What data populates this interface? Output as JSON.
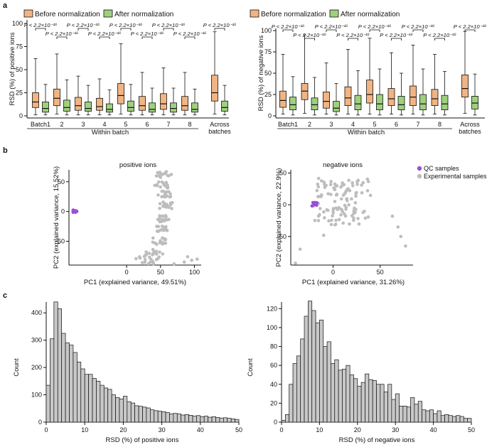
{
  "panels": {
    "a": "a",
    "b": "b",
    "c": "c"
  },
  "chart_data": [
    {
      "type": "box",
      "id": "a-pos",
      "ylabel": "RSD (%) of positive ions",
      "xlabel": "Within batch",
      "extra_label": "Across batches",
      "ylim": [
        0,
        100
      ],
      "yticks": [
        0,
        25,
        50,
        75,
        100
      ],
      "categories": [
        "Batch1",
        "2",
        "3",
        "4",
        "5",
        "6",
        "7",
        "8",
        "Across batches"
      ],
      "legend": [
        {
          "name": "Before normalization",
          "color": "#f2b482"
        },
        {
          "name": "After normalization",
          "color": "#9ed07e"
        }
      ],
      "series": [
        {
          "name": "Before normalization",
          "boxes": [
            {
              "min": 1,
              "q1": 9,
              "median": 15,
              "q3": 25,
              "max": 62
            },
            {
              "min": 2,
              "q1": 11,
              "median": 19,
              "q3": 29,
              "max": 67
            },
            {
              "min": 1,
              "q1": 6,
              "median": 11,
              "q3": 20,
              "max": 43
            },
            {
              "min": 1,
              "q1": 6,
              "median": 10,
              "q3": 19,
              "max": 40
            },
            {
              "min": 2,
              "q1": 13,
              "median": 22,
              "q3": 35,
              "max": 78
            },
            {
              "min": 1,
              "q1": 6,
              "median": 11,
              "q3": 21,
              "max": 47
            },
            {
              "min": 1,
              "q1": 7,
              "median": 13,
              "q3": 24,
              "max": 52
            },
            {
              "min": 1,
              "q1": 6,
              "median": 11,
              "q3": 21,
              "max": 47
            },
            {
              "min": 2,
              "q1": 16,
              "median": 25,
              "q3": 44,
              "max": 91
            }
          ]
        },
        {
          "name": "After normalization",
          "boxes": [
            {
              "min": 1,
              "q1": 4,
              "median": 8,
              "q3": 15,
              "max": 34
            },
            {
              "min": 1,
              "q1": 5,
              "median": 9,
              "q3": 17,
              "max": 39
            },
            {
              "min": 1,
              "q1": 5,
              "median": 8,
              "q3": 15,
              "max": 33
            },
            {
              "min": 1,
              "q1": 4,
              "median": 7,
              "q3": 13,
              "max": 28
            },
            {
              "min": 1,
              "q1": 5,
              "median": 9,
              "q3": 16,
              "max": 34
            },
            {
              "min": 1,
              "q1": 4,
              "median": 7,
              "q3": 14,
              "max": 30
            },
            {
              "min": 1,
              "q1": 4,
              "median": 8,
              "q3": 14,
              "max": 30
            },
            {
              "min": 1,
              "q1": 4,
              "median": 7,
              "q3": 14,
              "max": 29
            },
            {
              "min": 1,
              "q1": 5,
              "median": 9,
              "q3": 16,
              "max": 33
            }
          ]
        }
      ],
      "pvalue_label": "P < 2.2×10⁻¹⁶"
    },
    {
      "type": "box",
      "id": "a-neg",
      "ylabel": "RSD (%) of negative ions",
      "xlabel": "Within batch",
      "extra_label": "Across batches",
      "ylim": [
        0,
        100
      ],
      "yticks": [
        0,
        25,
        50,
        75,
        100
      ],
      "categories": [
        "Batch1",
        "2",
        "3",
        "4",
        "5",
        "6",
        "7",
        "8",
        "Across batches"
      ],
      "legend": [
        {
          "name": "Before normalization",
          "color": "#f2b482"
        },
        {
          "name": "After normalization",
          "color": "#9ed07e"
        }
      ],
      "series": [
        {
          "name": "Before normalization",
          "boxes": [
            {
              "min": 2,
              "q1": 10,
              "median": 18,
              "q3": 29,
              "max": 72
            },
            {
              "min": 3,
              "q1": 19,
              "median": 29,
              "q3": 38,
              "max": 95
            },
            {
              "min": 2,
              "q1": 9,
              "median": 17,
              "q3": 28,
              "max": 62
            },
            {
              "min": 2,
              "q1": 12,
              "median": 21,
              "q3": 34,
              "max": 78
            },
            {
              "min": 2,
              "q1": 15,
              "median": 25,
              "q3": 42,
              "max": 91
            },
            {
              "min": 2,
              "q1": 12,
              "median": 20,
              "q3": 32,
              "max": 74
            },
            {
              "min": 2,
              "q1": 12,
              "median": 22,
              "q3": 35,
              "max": 83
            },
            {
              "min": 2,
              "q1": 12,
              "median": 20,
              "q3": 31,
              "max": 72
            },
            {
              "min": 3,
              "q1": 22,
              "median": 32,
              "q3": 48,
              "max": 99
            }
          ]
        },
        {
          "name": "After normalization",
          "boxes": [
            {
              "min": 1,
              "q1": 7,
              "median": 13,
              "q3": 22,
              "max": 46
            },
            {
              "min": 1,
              "q1": 7,
              "median": 13,
              "q3": 21,
              "max": 45
            },
            {
              "min": 1,
              "q1": 5,
              "median": 9,
              "q3": 17,
              "max": 38
            },
            {
              "min": 1,
              "q1": 7,
              "median": 14,
              "q3": 24,
              "max": 53
            },
            {
              "min": 1,
              "q1": 7,
              "median": 14,
              "q3": 25,
              "max": 55
            },
            {
              "min": 1,
              "q1": 7,
              "median": 13,
              "q3": 23,
              "max": 50
            },
            {
              "min": 1,
              "q1": 7,
              "median": 14,
              "q3": 25,
              "max": 55
            },
            {
              "min": 1,
              "q1": 7,
              "median": 14,
              "q3": 24,
              "max": 52
            },
            {
              "min": 1,
              "q1": 8,
              "median": 15,
              "q3": 23,
              "max": 49
            }
          ]
        }
      ],
      "pvalue_label": "P < 2.2×10⁻¹⁶"
    },
    {
      "type": "scatter",
      "id": "b-pos",
      "title": "positive ions",
      "xlabel": "PC1 (explained variance, 49.51%)",
      "ylabel": "PC2 (explained variance, 15.52%)",
      "xlim": [
        -85,
        110
      ],
      "ylim": [
        -90,
        70
      ],
      "xticks": [
        0,
        50,
        100
      ],
      "yticks": [
        -50,
        0,
        50
      ],
      "qc_color": "#9b4fd6",
      "exp_color": "#bdbdbd"
    },
    {
      "type": "scatter",
      "id": "b-neg",
      "title": "negative ions",
      "xlabel": "PC1 (explained variance, 31.26%)",
      "ylabel": "PC2 (explained variance, 22.9%)",
      "xlim": [
        -45,
        85
      ],
      "ylim": [
        -95,
        55
      ],
      "xticks": [
        0,
        50
      ],
      "yticks": [
        -50,
        0,
        50
      ],
      "legend": [
        {
          "name": "QC samples",
          "color": "#9b4fd6"
        },
        {
          "name": "Experimental samples",
          "color": "#bdbdbd"
        }
      ]
    },
    {
      "type": "histogram",
      "id": "c-pos",
      "xlabel": "RSD (%)  of positive ions",
      "ylabel": "Count",
      "xlim": [
        0,
        50
      ],
      "ylim": [
        0,
        450
      ],
      "xticks": [
        0,
        10,
        20,
        30,
        40,
        50
      ],
      "yticks": [
        0,
        100,
        200,
        300,
        400
      ],
      "bin_width": 1,
      "counts": [
        135,
        305,
        440,
        415,
        325,
        290,
        282,
        255,
        220,
        195,
        175,
        175,
        160,
        150,
        135,
        125,
        120,
        100,
        90,
        85,
        95,
        75,
        70,
        60,
        58,
        55,
        52,
        45,
        42,
        40,
        38,
        35,
        30,
        32,
        30,
        26,
        28,
        25,
        22,
        24,
        20,
        22,
        18,
        20,
        17,
        15,
        16,
        14,
        12,
        10
      ]
    },
    {
      "type": "histogram",
      "id": "c-neg",
      "xlabel": "RSD (%)  of negative ions",
      "ylabel": "Count",
      "xlim": [
        0,
        50
      ],
      "ylim": [
        0,
        130
      ],
      "xticks": [
        0,
        10,
        20,
        30,
        40,
        50
      ],
      "yticks": [
        0,
        20,
        40,
        60,
        80,
        100,
        120
      ],
      "bin_width": 1,
      "counts": [
        2,
        8,
        40,
        62,
        70,
        88,
        112,
        128,
        118,
        105,
        108,
        80,
        85,
        62,
        66,
        55,
        56,
        60,
        50,
        46,
        38,
        42,
        51,
        45,
        44,
        40,
        40,
        32,
        40,
        24,
        30,
        17,
        17,
        16,
        26,
        19,
        22,
        13,
        12,
        13,
        9,
        12,
        7,
        8,
        7,
        6,
        7,
        6,
        4,
        4
      ]
    }
  ]
}
